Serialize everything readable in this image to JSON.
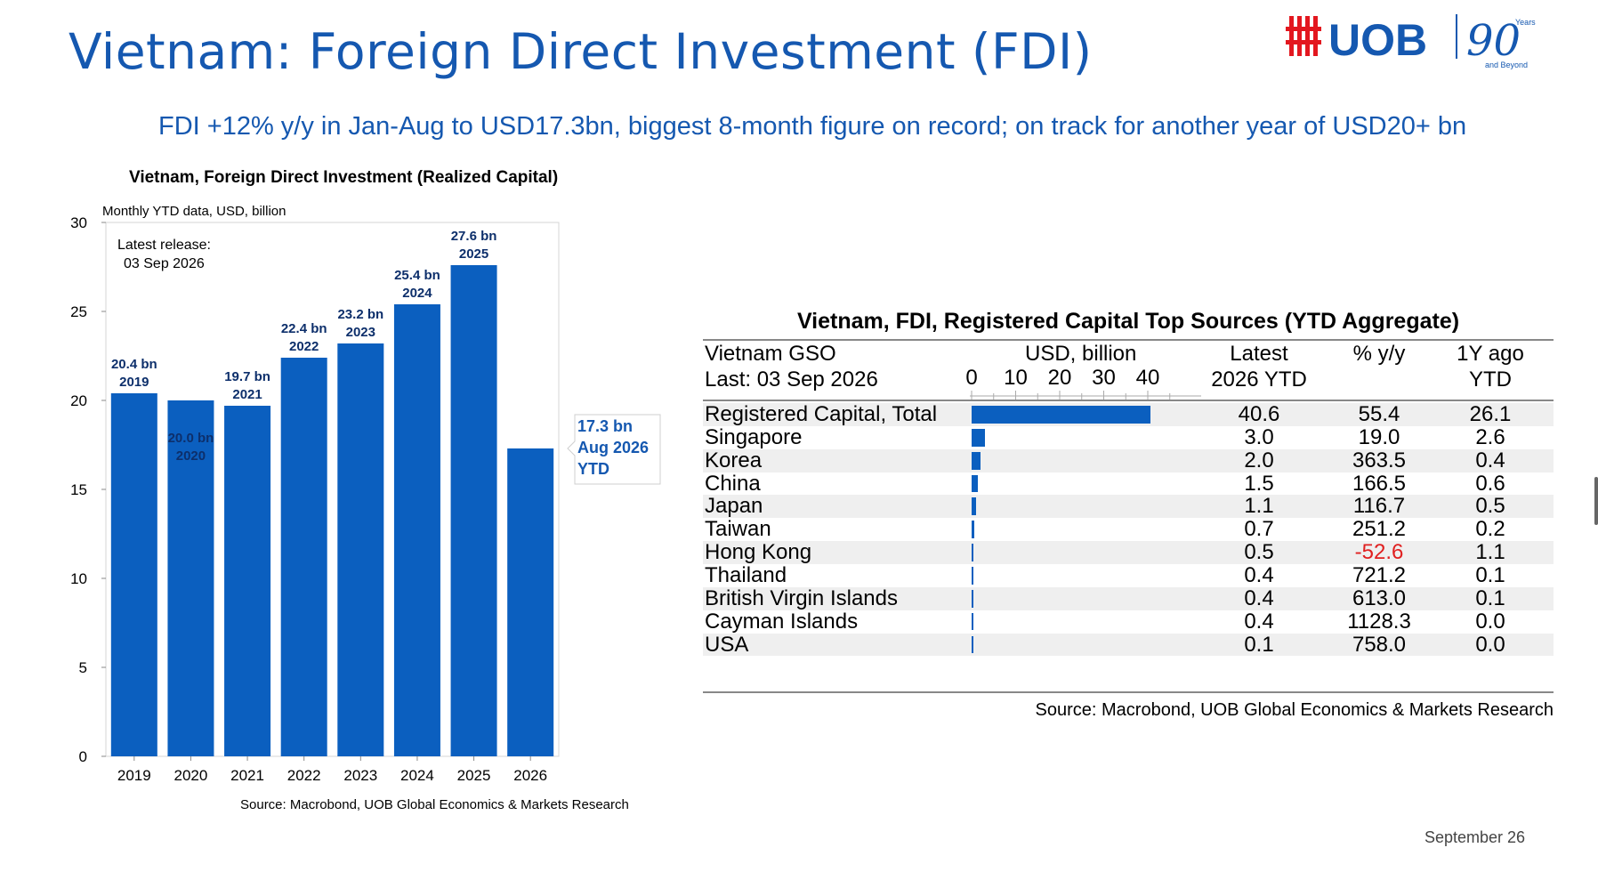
{
  "page": {
    "title": "Vietnam: Foreign Direct Investment (FDI)",
    "subtitle": "FDI +12% y/y in Jan-Aug to USD17.3bn, biggest 8-month figure on record; on track for another year of USD20+ bn",
    "footer_date": "September 26"
  },
  "logo": {
    "brand": "UOB",
    "years_number": "90",
    "years_word": "Years",
    "tagline": "and Beyond",
    "brand_color": "#1558b0",
    "accent_color": "#e3171f"
  },
  "left_chart": {
    "title": "Vietnam, Foreign Direct Investment (Realized Capital)",
    "unit": "Monthly YTD data, USD, billion",
    "source": "Source: Macrobond, UOB Global Economics & Markets Research",
    "release_line1": "Latest release:",
    "release_line2": "03 Sep 2026",
    "callout": [
      "17.3 bn",
      "Aug 2026",
      "YTD"
    ]
  },
  "chart_data": [
    {
      "type": "bar",
      "title": "Vietnam, Foreign Direct Investment (Realized Capital)",
      "ylabel": "Monthly YTD data, USD, billion",
      "categories": [
        "2019",
        "2020",
        "2021",
        "2022",
        "2023",
        "2024",
        "2025",
        "2026"
      ],
      "values": [
        20.4,
        20.0,
        19.7,
        22.4,
        23.2,
        25.4,
        27.6,
        17.3
      ],
      "labels": [
        [
          "20.4 bn",
          "2019"
        ],
        [
          "20.0 bn",
          "2020"
        ],
        [
          "19.7 bn",
          "2021"
        ],
        [
          "22.4 bn",
          "2022"
        ],
        [
          "23.2 bn",
          "2023"
        ],
        [
          "25.4 bn",
          "2024"
        ],
        [
          "27.6 bn",
          "2025"
        ],
        null
      ],
      "ylim": [
        0,
        30
      ],
      "yticks": [
        0,
        5,
        10,
        15,
        20,
        25,
        30
      ],
      "grid": false,
      "bar_color": "#0b5fbf",
      "label_color": "#0d2f6b"
    },
    {
      "type": "table",
      "title": "Vietnam, FDI, Registered Capital Top Sources (YTD Aggregate)",
      "source_header": [
        "Vietnam GSO",
        "Last: 03 Sep 2026"
      ],
      "bar_header": "USD, billion",
      "axis_ticks": [
        0,
        10,
        20,
        30,
        40
      ],
      "columns": [
        [
          "Latest",
          "2026 YTD"
        ],
        [
          "% y/y",
          ""
        ],
        [
          "1Y ago",
          "YTD"
        ]
      ],
      "rows": [
        {
          "name": "Registered Capital, Total",
          "latest": "40.6",
          "yoy": "55.4",
          "ago": "26.1",
          "value": 40.6
        },
        {
          "name": "Singapore",
          "latest": "3.0",
          "yoy": "19.0",
          "ago": "2.6",
          "value": 3.0
        },
        {
          "name": "Korea",
          "latest": "2.0",
          "yoy": "363.5",
          "ago": "0.4",
          "value": 2.0
        },
        {
          "name": "China",
          "latest": "1.5",
          "yoy": "166.5",
          "ago": "0.6",
          "value": 1.5
        },
        {
          "name": "Japan",
          "latest": "1.1",
          "yoy": "116.7",
          "ago": "0.5",
          "value": 1.1
        },
        {
          "name": "Taiwan",
          "latest": "0.7",
          "yoy": "251.2",
          "ago": "0.2",
          "value": 0.7
        },
        {
          "name": "Hong Kong",
          "latest": "0.5",
          "yoy": "-52.6",
          "ago": "1.1",
          "value": 0.5
        },
        {
          "name": "Thailand",
          "latest": "0.4",
          "yoy": "721.2",
          "ago": "0.1",
          "value": 0.4
        },
        {
          "name": "British Virgin Islands",
          "latest": "0.4",
          "yoy": "613.0",
          "ago": "0.1",
          "value": 0.4
        },
        {
          "name": "Cayman Islands",
          "latest": "0.4",
          "yoy": "1128.3",
          "ago": "0.0",
          "value": 0.4
        },
        {
          "name": "USA",
          "latest": "0.1",
          "yoy": "758.0",
          "ago": "0.0",
          "value": 0.1
        }
      ],
      "negative_color": "#e02020",
      "bar_color": "#0b5fbf",
      "source": "Source: Macrobond, UOB Global Economics & Markets Research"
    }
  ]
}
